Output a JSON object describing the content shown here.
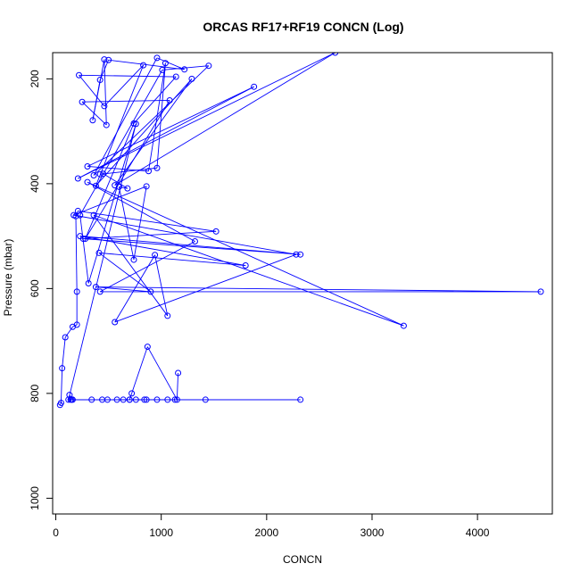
{
  "chart_data": {
    "type": "line",
    "title": "ORCAS RF17+RF19 CONCN (Log)",
    "xlabel": "CONCN",
    "ylabel": "Pressure (mbar)",
    "xlim": [
      -30,
      4710
    ],
    "ylim": [
      1030,
      150
    ],
    "y_reversed": true,
    "x_ticks": [
      0,
      1000,
      2000,
      3000,
      4000
    ],
    "y_ticks": [
      200,
      400,
      600,
      800,
      1000
    ],
    "x_tick_labels": [
      "0",
      "1000",
      "2000",
      "3000",
      "4000"
    ],
    "y_tick_labels": [
      "200",
      "400",
      "600",
      "800",
      "1000"
    ],
    "grid": false,
    "series": [
      {
        "color": "#0000ff",
        "marker": "open-circle",
        "points": [
          [
            40,
            822
          ],
          [
            50,
            818
          ],
          [
            60,
            752
          ],
          [
            90,
            693
          ],
          [
            160,
            673
          ],
          [
            200,
            669
          ],
          [
            200,
            606
          ],
          [
            190,
            462
          ],
          [
            210,
            452
          ],
          [
            1520,
            491
          ],
          [
            260,
            505
          ],
          [
            2320,
            535
          ],
          [
            230,
            500
          ],
          [
            1800,
            556
          ],
          [
            410,
            532
          ],
          [
            900,
            606
          ],
          [
            380,
            597
          ],
          [
            4600,
            606
          ],
          [
            420,
            606
          ],
          [
            1320,
            510
          ],
          [
            300,
            397
          ],
          [
            3300,
            671
          ],
          [
            360,
            460
          ],
          [
            1060,
            652
          ],
          [
            940,
            536
          ],
          [
            560,
            664
          ],
          [
            2280,
            535
          ],
          [
            170,
            460
          ],
          [
            860,
            405
          ],
          [
            740,
            545
          ],
          [
            600,
            406
          ],
          [
            680,
            409
          ],
          [
            450,
            381
          ],
          [
            420,
            382
          ],
          [
            960,
            370
          ],
          [
            1040,
            170
          ],
          [
            880,
            376
          ],
          [
            300,
            367
          ],
          [
            1880,
            215
          ],
          [
            210,
            390
          ],
          [
            2650,
            150
          ],
          [
            560,
            403
          ],
          [
            1290,
            200
          ],
          [
            380,
            404
          ],
          [
            830,
            174
          ],
          [
            460,
            252
          ],
          [
            220,
            193
          ],
          [
            1140,
            196
          ],
          [
            740,
            285
          ],
          [
            280,
            505
          ],
          [
            1080,
            241
          ],
          [
            250,
            244
          ],
          [
            480,
            288
          ],
          [
            460,
            163
          ],
          [
            350,
            279
          ],
          [
            420,
            202
          ],
          [
            500,
            164
          ],
          [
            1220,
            182
          ],
          [
            960,
            160
          ],
          [
            360,
            384
          ],
          [
            1450,
            175
          ],
          [
            1010,
            183
          ],
          [
            230,
            460
          ],
          [
            310,
            590
          ],
          [
            760,
            286
          ],
          [
            120,
            812
          ],
          [
            340,
            812
          ],
          [
            150,
            812
          ],
          [
            490,
            812
          ],
          [
            440,
            812
          ],
          [
            580,
            812
          ],
          [
            640,
            812
          ],
          [
            700,
            812
          ],
          [
            760,
            812
          ],
          [
            840,
            812
          ],
          [
            860,
            812
          ],
          [
            960,
            812
          ],
          [
            1060,
            812
          ],
          [
            1130,
            812
          ],
          [
            1420,
            812
          ],
          [
            2320,
            812
          ],
          [
            160,
            812
          ],
          [
            130,
            803
          ],
          [
            140,
            812
          ],
          [
            700,
            812
          ],
          [
            720,
            800
          ],
          [
            870,
            711
          ],
          [
            1150,
            812
          ],
          [
            1160,
            761
          ]
        ]
      }
    ]
  }
}
